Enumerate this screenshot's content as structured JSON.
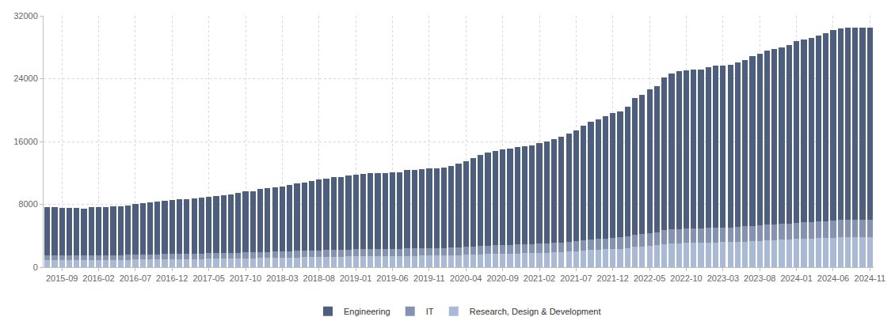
{
  "chart_data": {
    "type": "bar",
    "stacked": true,
    "grid": true,
    "legend": "bottom",
    "categories": [
      null,
      null,
      "2015-09",
      null,
      null,
      null,
      null,
      "2016-02",
      null,
      null,
      null,
      null,
      "2016-07",
      null,
      null,
      null,
      null,
      "2016-12",
      null,
      null,
      null,
      null,
      "2017-05",
      null,
      null,
      null,
      null,
      "2017-10",
      null,
      null,
      null,
      null,
      "2018-03",
      null,
      null,
      null,
      null,
      "2018-08",
      null,
      null,
      null,
      null,
      "2019-01",
      null,
      null,
      null,
      null,
      "2019-06",
      null,
      null,
      null,
      null,
      "2019-11",
      null,
      null,
      null,
      null,
      "2020-04",
      null,
      null,
      null,
      null,
      "2020-09",
      null,
      null,
      null,
      null,
      "2021-02",
      null,
      null,
      null,
      null,
      "2021-07",
      null,
      null,
      null,
      null,
      "2021-12",
      null,
      null,
      null,
      null,
      "2022-05",
      null,
      null,
      null,
      null,
      "2022-10",
      null,
      null,
      null,
      null,
      "2023-03",
      null,
      null,
      null,
      null,
      "2023-08",
      null,
      null,
      null,
      null,
      "2024-01",
      null,
      null,
      null,
      null,
      "2024-06",
      null,
      null,
      null,
      null,
      "2024-11"
    ],
    "series": [
      {
        "name": "Engineering",
        "color": "#4d5f7d",
        "values": [
          6130,
          6100,
          6080,
          6060,
          6070,
          6000,
          6090,
          6130,
          6150,
          6160,
          6220,
          6280,
          6450,
          6530,
          6610,
          6700,
          6780,
          6910,
          6950,
          6980,
          7020,
          7100,
          7180,
          7270,
          7350,
          7420,
          7590,
          7760,
          7790,
          8010,
          8090,
          8210,
          8290,
          8460,
          8580,
          8710,
          8880,
          9000,
          9080,
          9250,
          9280,
          9400,
          9530,
          9620,
          9650,
          9690,
          9690,
          9720,
          9760,
          9980,
          10010,
          10050,
          10130,
          10170,
          10200,
          10420,
          10630,
          10880,
          11270,
          11570,
          11820,
          12020,
          12140,
          12260,
          12430,
          12500,
          12570,
          12770,
          12970,
          13210,
          13450,
          13770,
          14090,
          14630,
          14990,
          15260,
          15530,
          15850,
          16040,
          16470,
          17360,
          17670,
          18230,
          18540,
          19510,
          19900,
          20090,
          20160,
          20230,
          20260,
          20500,
          20620,
          20650,
          20720,
          20920,
          21210,
          21620,
          21860,
          22150,
          22340,
          22490,
          22730,
          23090,
          23240,
          23440,
          23630,
          23920,
          24190,
          24350,
          24420,
          24450,
          24450,
          24410
        ]
      },
      {
        "name": "IT",
        "color": "#8693b0",
        "values": [
          620,
          620,
          610,
          610,
          610,
          600,
          610,
          620,
          620,
          620,
          630,
          630,
          640,
          650,
          660,
          660,
          670,
          680,
          680,
          690,
          690,
          700,
          710,
          710,
          720,
          730,
          740,
          750,
          760,
          770,
          780,
          790,
          800,
          810,
          820,
          830,
          840,
          850,
          860,
          870,
          880,
          890,
          900,
          900,
          910,
          910,
          910,
          920,
          920,
          930,
          940,
          940,
          950,
          950,
          960,
          970,
          980,
          1000,
          1020,
          1040,
          1060,
          1080,
          1090,
          1100,
          1110,
          1120,
          1130,
          1150,
          1170,
          1190,
          1210,
          1240,
          1270,
          1310,
          1340,
          1370,
          1400,
          1430,
          1450,
          1490,
          1560,
          1590,
          1640,
          1670,
          1740,
          1780,
          1800,
          1810,
          1820,
          1830,
          1850,
          1860,
          1870,
          1880,
          1900,
          1920,
          1950,
          1970,
          1990,
          2010,
          2030,
          2050,
          2080,
          2100,
          2120,
          2140,
          2160,
          2190,
          2200,
          2210,
          2220,
          2220,
          2210
        ]
      },
      {
        "name": "Research, Design & Development",
        "color": "#aabad5",
        "values": [
          900,
          900,
          890,
          890,
          890,
          880,
          900,
          900,
          910,
          920,
          930,
          940,
          960,
          970,
          980,
          990,
          1000,
          1010,
          1020,
          1030,
          1040,
          1050,
          1060,
          1070,
          1080,
          1100,
          1120,
          1140,
          1150,
          1170,
          1180,
          1200,
          1210,
          1230,
          1250,
          1260,
          1280,
          1300,
          1310,
          1330,
          1340,
          1360,
          1370,
          1380,
          1390,
          1400,
          1400,
          1410,
          1420,
          1440,
          1450,
          1460,
          1470,
          1480,
          1490,
          1510,
          1540,
          1570,
          1610,
          1640,
          1670,
          1700,
          1720,
          1740,
          1760,
          1780,
          1800,
          1830,
          1860,
          1900,
          1940,
          1990,
          2040,
          2110,
          2170,
          2220,
          2270,
          2320,
          2360,
          2440,
          2580,
          2640,
          2730,
          2790,
          2950,
          3020,
          3060,
          3080,
          3100,
          3110,
          3150,
          3170,
          3180,
          3200,
          3230,
          3270,
          3330,
          3370,
          3410,
          3450,
          3480,
          3520,
          3580,
          3610,
          3640,
          3680,
          3720,
          3770,
          3800,
          3820,
          3830,
          3830,
          3830
        ]
      }
    ],
    "ylim": [
      0,
      32000
    ],
    "yticks": [
      0,
      8000,
      16000,
      24000,
      32000
    ]
  }
}
